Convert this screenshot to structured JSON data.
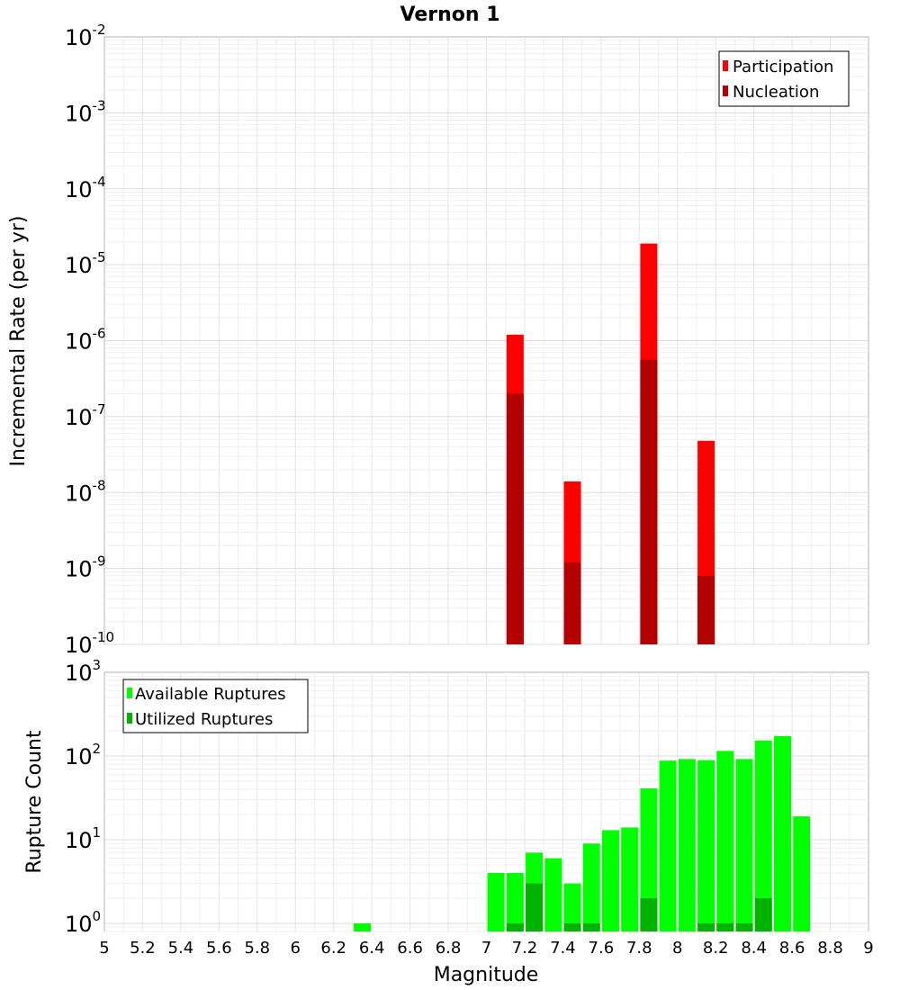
{
  "chart_data": [
    {
      "type": "bar",
      "title": "Vernon 1",
      "xlabel": "",
      "ylabel": "Incremental Rate (per yr)",
      "yscale": "log",
      "xlim": [
        5,
        9
      ],
      "ylim": [
        1e-10,
        0.01
      ],
      "grid": true,
      "legend_position": "top-right",
      "y_ticks": [
        {
          "base": "10",
          "exp": "-2"
        },
        {
          "base": "10",
          "exp": "-3"
        },
        {
          "base": "10",
          "exp": "-4"
        },
        {
          "base": "10",
          "exp": "-5"
        },
        {
          "base": "10",
          "exp": "-6"
        },
        {
          "base": "10",
          "exp": "-7"
        },
        {
          "base": "10",
          "exp": "-8"
        },
        {
          "base": "10",
          "exp": "-9"
        },
        {
          "base": "10",
          "exp": "-10"
        }
      ],
      "series": [
        {
          "name": "Participation",
          "color": "#ff0000",
          "x": [
            7.15,
            7.45,
            7.85,
            8.15
          ],
          "values": [
            1.2e-06,
            1.4e-08,
            1.9e-05,
            4.8e-08
          ]
        },
        {
          "name": "Nucleation",
          "color": "#b30000",
          "x": [
            7.15,
            7.45,
            7.85,
            8.15
          ],
          "values": [
            2e-07,
            1.2e-09,
            5.6e-07,
            8e-10
          ]
        }
      ]
    },
    {
      "type": "bar",
      "title": "",
      "xlabel": "Magnitude",
      "ylabel": "Rupture Count",
      "yscale": "log",
      "xlim": [
        5,
        9
      ],
      "ylim": [
        0.8,
        1000
      ],
      "grid": true,
      "legend_position": "top-left",
      "x_ticks": [
        "5",
        "5.2",
        "5.4",
        "5.6",
        "5.8",
        "6",
        "6.2",
        "6.4",
        "6.6",
        "6.8",
        "7",
        "7.2",
        "7.4",
        "7.6",
        "7.8",
        "8",
        "8.2",
        "8.4",
        "8.6",
        "8.8",
        "9"
      ],
      "y_ticks": [
        {
          "base": "10",
          "exp": "3"
        },
        {
          "base": "10",
          "exp": "2"
        },
        {
          "base": "10",
          "exp": "1"
        },
        {
          "base": "10",
          "exp": "0"
        }
      ],
      "series": [
        {
          "name": "Available Ruptures",
          "color": "#00ff00",
          "x": [
            6.35,
            7.05,
            7.15,
            7.25,
            7.35,
            7.45,
            7.55,
            7.65,
            7.75,
            7.85,
            7.95,
            8.05,
            8.15,
            8.25,
            8.35,
            8.45,
            8.55,
            8.65
          ],
          "values": [
            1,
            4,
            4,
            7,
            6,
            3,
            9,
            13,
            14,
            41,
            88,
            92,
            89,
            115,
            92,
            153,
            173,
            19
          ]
        },
        {
          "name": "Utilized Ruptures",
          "color": "#00b300",
          "x": [
            7.15,
            7.25,
            7.45,
            7.55,
            7.85,
            8.15,
            8.25,
            8.35,
            8.45
          ],
          "values": [
            1,
            3,
            1,
            1,
            2,
            1,
            1,
            1,
            2
          ]
        }
      ]
    }
  ]
}
